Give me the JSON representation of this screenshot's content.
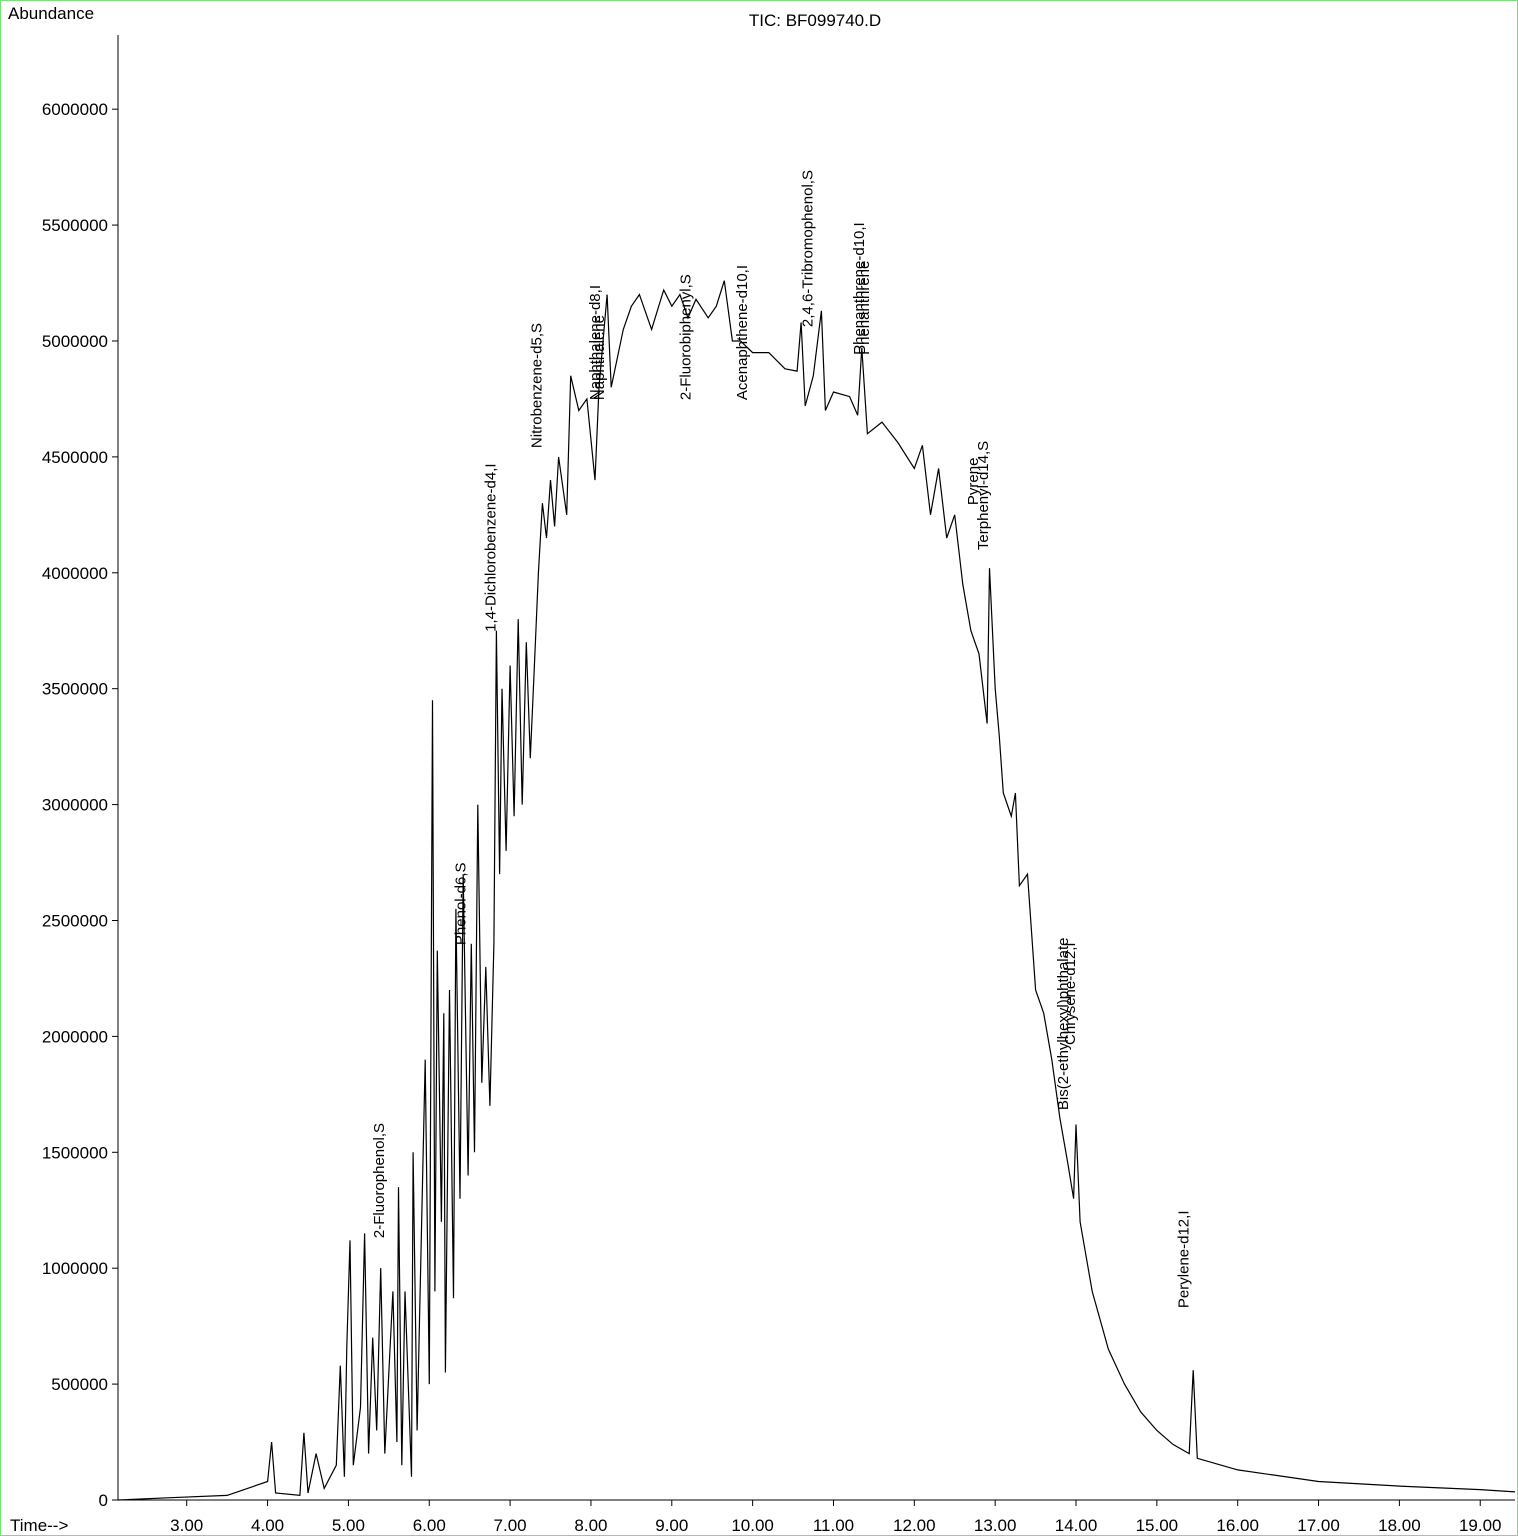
{
  "chart_data": {
    "type": "line",
    "title": "TIC: BF099740.D",
    "y_label": "Abundance",
    "x_label": "Time-->",
    "color": "#000000",
    "xlim": [
      2.15,
      19.43
    ],
    "ylim": [
      0,
      6320000
    ],
    "xticks": [
      {
        "value": 3,
        "label": "3.00"
      },
      {
        "value": 4,
        "label": "4.00"
      },
      {
        "value": 5,
        "label": "5.00"
      },
      {
        "value": 6,
        "label": "6.00"
      },
      {
        "value": 7,
        "label": "7.00"
      },
      {
        "value": 8,
        "label": "8.00"
      },
      {
        "value": 9,
        "label": "9.00"
      },
      {
        "value": 10,
        "label": "10.00"
      },
      {
        "value": 11,
        "label": "11.00"
      },
      {
        "value": 12,
        "label": "12.00"
      },
      {
        "value": 13,
        "label": "13.00"
      },
      {
        "value": 14,
        "label": "14.00"
      },
      {
        "value": 15,
        "label": "15.00"
      },
      {
        "value": 16,
        "label": "16.00"
      },
      {
        "value": 17,
        "label": "17.00"
      },
      {
        "value": 18,
        "label": "18.00"
      },
      {
        "value": 19,
        "label": "19.00"
      }
    ],
    "yticks": [
      0,
      500000,
      1000000,
      1500000,
      2000000,
      2500000,
      3000000,
      3500000,
      4000000,
      4500000,
      5000000,
      5500000,
      6000000
    ],
    "x": [
      2.15,
      2.8,
      3.5,
      4.0,
      4.05,
      4.1,
      4.4,
      4.45,
      4.5,
      4.6,
      4.7,
      4.85,
      4.9,
      4.95,
      4.98,
      5.02,
      5.06,
      5.15,
      5.2,
      5.25,
      5.3,
      5.35,
      5.4,
      5.45,
      5.55,
      5.6,
      5.62,
      5.66,
      5.7,
      5.78,
      5.8,
      5.85,
      5.95,
      6.0,
      6.04,
      6.07,
      6.1,
      6.15,
      6.18,
      6.2,
      6.25,
      6.3,
      6.33,
      6.38,
      6.42,
      6.48,
      6.52,
      6.56,
      6.6,
      6.65,
      6.7,
      6.75,
      6.8,
      6.83,
      6.87,
      6.9,
      6.95,
      7.0,
      7.05,
      7.1,
      7.15,
      7.2,
      7.25,
      7.3,
      7.35,
      7.4,
      7.45,
      7.5,
      7.55,
      7.6,
      7.7,
      7.75,
      7.85,
      7.95,
      8.05,
      8.1,
      8.2,
      8.25,
      8.4,
      8.5,
      8.6,
      8.75,
      8.9,
      9.0,
      9.1,
      9.2,
      9.3,
      9.45,
      9.55,
      9.65,
      9.75,
      9.85,
      10.0,
      10.2,
      10.4,
      10.55,
      10.6,
      10.65,
      10.75,
      10.85,
      10.9,
      11.0,
      11.2,
      11.3,
      11.35,
      11.42,
      11.6,
      11.8,
      12.0,
      12.1,
      12.2,
      12.3,
      12.4,
      12.5,
      12.6,
      12.7,
      12.8,
      12.9,
      12.93,
      13.0,
      13.05,
      13.1,
      13.2,
      13.25,
      13.3,
      13.4,
      13.5,
      13.6,
      13.7,
      13.8,
      13.9,
      13.97,
      14.0,
      14.05,
      14.2,
      14.4,
      14.6,
      14.8,
      15.0,
      15.2,
      15.4,
      15.45,
      15.5,
      16.0,
      17.0,
      18.0,
      19.0,
      19.43
    ],
    "values": [
      0,
      10000,
      20000,
      80000,
      250000,
      30000,
      20000,
      290000,
      30000,
      200000,
      50000,
      150000,
      580000,
      100000,
      660000,
      1120000,
      150000,
      400000,
      1150000,
      200000,
      700000,
      300000,
      1000000,
      200000,
      900000,
      250000,
      1350000,
      150000,
      900000,
      100000,
      1500000,
      300000,
      1900000,
      500000,
      3450000,
      900000,
      2370000,
      1200000,
      2100000,
      550000,
      2200000,
      870000,
      2550000,
      1300000,
      2700000,
      1400000,
      2400000,
      1500000,
      3000000,
      1800000,
      2300000,
      1700000,
      2400000,
      3750000,
      2700000,
      3500000,
      2800000,
      3600000,
      2950000,
      3800000,
      3000000,
      3700000,
      3200000,
      3600000,
      4000000,
      4300000,
      4150000,
      4400000,
      4200000,
      4500000,
      4250000,
      4850000,
      4700000,
      4750000,
      4400000,
      4800000,
      5200000,
      4800000,
      5050000,
      5150000,
      5200000,
      5050000,
      5220000,
      5150000,
      5200000,
      5100000,
      5180000,
      5100000,
      5150000,
      5260000,
      5000000,
      5000000,
      4950000,
      4950000,
      4880000,
      4870000,
      5080000,
      4720000,
      4850000,
      5130000,
      4700000,
      4780000,
      4760000,
      4680000,
      4970000,
      4600000,
      4650000,
      4560000,
      4450000,
      4550000,
      4250000,
      4450000,
      4150000,
      4250000,
      3950000,
      3750000,
      3650000,
      3350000,
      4020000,
      3500000,
      3300000,
      3050000,
      2950000,
      3050000,
      2650000,
      2700000,
      2200000,
      2100000,
      1900000,
      1650000,
      1450000,
      1300000,
      1620000,
      1200000,
      900000,
      650000,
      500000,
      380000,
      300000,
      240000,
      200000,
      560000,
      180000,
      130000,
      80000,
      60000,
      45000,
      35000
    ],
    "annotations": [
      {
        "text": "2-Fluorophenol,S",
        "x": 5.44,
        "y": 1130000
      },
      {
        "text": "Phenol-d6,S",
        "x": 6.45,
        "y": 2394000
      },
      {
        "text": "1,4-Dichlorobenzene-d4,I",
        "x": 6.82,
        "y": 3745000
      },
      {
        "text": "Nitrobenzene-d5,S",
        "x": 7.39,
        "y": 4538000
      },
      {
        "text": "Naphthalene-d8,I",
        "x": 8.11,
        "y": 4745000
      },
      {
        "text": "Naphthalene",
        "x": 8.16,
        "y": 4745000
      },
      {
        "text": "2-Fluorobiphenyl,S",
        "x": 9.23,
        "y": 4745000
      },
      {
        "text": "Acenaphthene-d10,I",
        "x": 9.93,
        "y": 4745000
      },
      {
        "text": "2,4,6-Tribromophenol,S",
        "x": 10.74,
        "y": 5060000
      },
      {
        "text": "Phenanthrene-d10,I",
        "x": 11.38,
        "y": 4940000
      },
      {
        "text": "Phenanthrene",
        "x": 11.44,
        "y": 4940000
      },
      {
        "text": "Pyrene",
        "x": 12.79,
        "y": 4292000
      },
      {
        "text": "Terphenyl-d14,S",
        "x": 12.91,
        "y": 4098000
      },
      {
        "text": "Bis(2-ethylhexyl)phthalate",
        "x": 13.9,
        "y": 1682000
      },
      {
        "text": "Chrysene-d12,I",
        "x": 13.99,
        "y": 1963000
      },
      {
        "text": "Perylene-d12,I",
        "x": 15.39,
        "y": 828000
      }
    ]
  }
}
